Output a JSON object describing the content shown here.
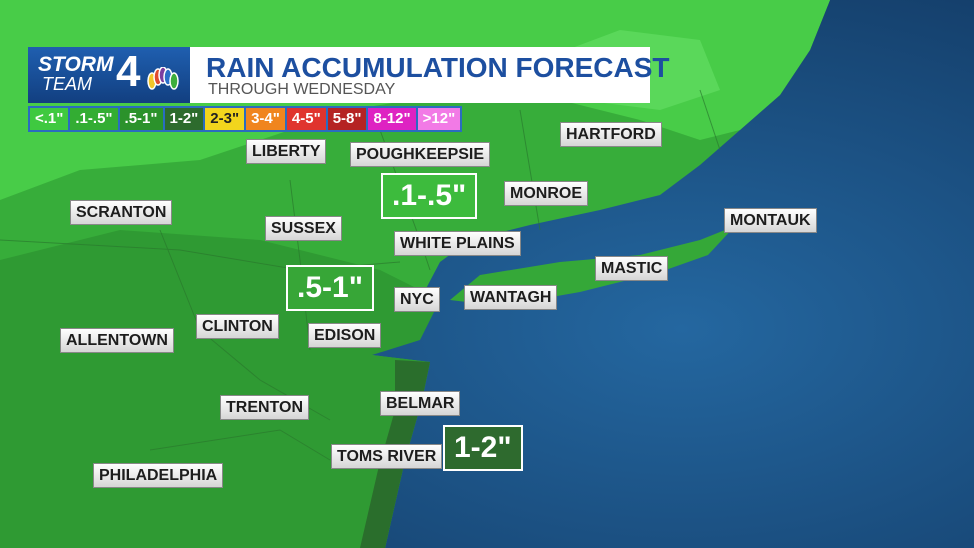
{
  "header": {
    "logo_line1": "STORM",
    "logo_line2": "TEAM",
    "logo_number": "4",
    "title": "RAIN ACCUMULATION FORECAST",
    "subtitle": "THROUGH WEDNESDAY"
  },
  "legend": [
    {
      "label": "<.1\"",
      "color": "#3fc940"
    },
    {
      "label": ".1-.5\"",
      "color": "#33ad33"
    },
    {
      "label": ".5-1\"",
      "color": "#2b922b"
    },
    {
      "label": "1-2\"",
      "color": "#2d6b2d"
    },
    {
      "label": "2-3\"",
      "color": "#f2d51d"
    },
    {
      "label": "3-4\"",
      "color": "#f0851e"
    },
    {
      "label": "4-5\"",
      "color": "#e0342e"
    },
    {
      "label": "5-8\"",
      "color": "#b52323"
    },
    {
      "label": "8-12\"",
      "color": "#de22c2"
    },
    {
      "label": ">12\"",
      "color": "#f27ae6"
    }
  ],
  "cities": [
    "LIBERTY",
    "POUGHKEEPSIE",
    "HARTFORD",
    "SCRANTON",
    "MONROE",
    "MONTAUK",
    "SUSSEX",
    "WHITE PLAINS",
    "MASTIC",
    "NYC",
    "WANTAGH",
    "ALLENTOWN",
    "CLINTON",
    "EDISON",
    "BELMAR",
    "TRENTON",
    "TOMS RIVER",
    "PHILADELPHIA"
  ],
  "zones": [
    ".1-.5\"",
    ".5-1\"",
    "1-2\""
  ]
}
